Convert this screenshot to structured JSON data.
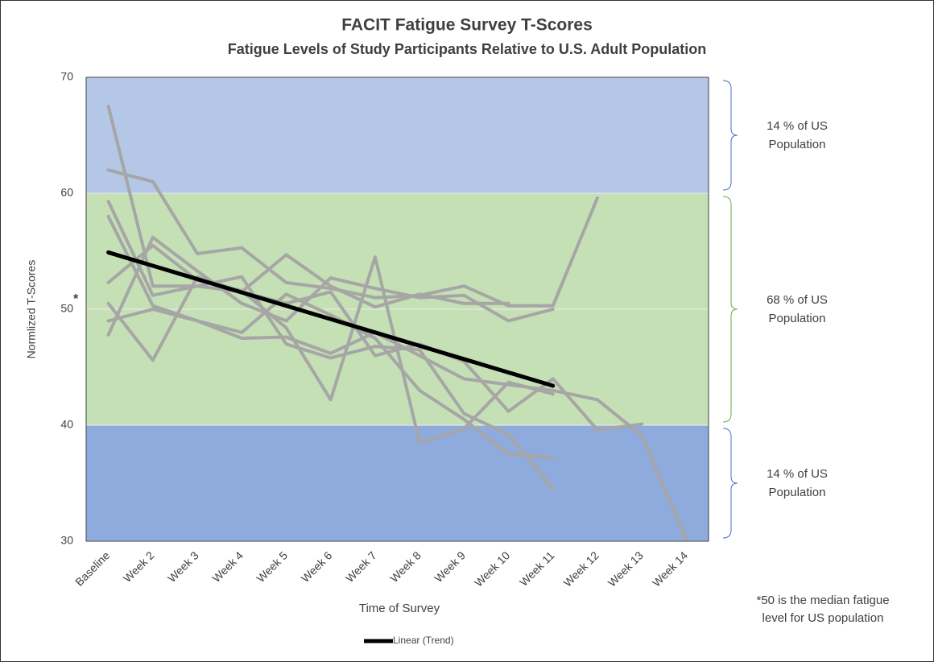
{
  "chart_data": {
    "type": "line",
    "title": "FACIT Fatigue Survey T-Scores",
    "subtitle": "Fatigue Levels of Study Participants Relative to U.S. Adult Population",
    "x_label": "Time of Survey",
    "y_label": "Normlized T-Scores",
    "categories": [
      "Baseline",
      "Week 2",
      "Week 3",
      "Week 4",
      "Week 5",
      "Week 6",
      "Week 7",
      "Week 8",
      "Week 9",
      "Week 10",
      "Week 11",
      "Week 12",
      "Week 13",
      "Week 14"
    ],
    "ylim": [
      30,
      70
    ],
    "yticks": [
      30,
      40,
      50,
      60,
      70
    ],
    "bands": [
      {
        "range": [
          60,
          70
        ],
        "color": "#b4c7e7"
      },
      {
        "range": [
          40,
          60
        ],
        "color": "#c5e0b4"
      },
      {
        "range": [
          30,
          40
        ],
        "color": "#8faadc"
      }
    ],
    "series": [
      {
        "color": "#a6a6a6",
        "values": [
          62,
          61,
          54.8,
          55.3,
          52.3,
          51.8,
          51,
          51.2,
          52,
          50.3,
          50.3,
          59.6,
          null,
          null
        ]
      },
      {
        "color": "#a6a6a6",
        "values": [
          67.5,
          52,
          52,
          51.5,
          54.7,
          52,
          50.2,
          51.3,
          50.5,
          50.5,
          null,
          null,
          null,
          null
        ]
      },
      {
        "color": "#a6a6a6",
        "values": [
          59.3,
          51.2,
          52,
          52.8,
          47,
          45.8,
          46.8,
          46.5,
          41,
          39.2,
          34.5,
          null,
          null,
          null
        ]
      },
      {
        "color": "#a6a6a6",
        "values": [
          58,
          50.3,
          49,
          48,
          51.3,
          49.5,
          47.5,
          43,
          40.5,
          37.5,
          37.2,
          null,
          null,
          null
        ]
      },
      {
        "color": "#a6a6a6",
        "values": [
          47.8,
          56.2,
          53.3,
          50.5,
          49,
          52.7,
          51.8,
          51,
          51.2,
          49,
          50,
          null,
          null,
          null
        ]
      },
      {
        "color": "#a6a6a6",
        "values": [
          52.3,
          55.5,
          52.5,
          51.6,
          48.4,
          42.2,
          54.5,
          38.5,
          39.7,
          43.7,
          42.7,
          null,
          null,
          null
        ]
      },
      {
        "color": "#a6a6a6",
        "values": [
          50.5,
          45.6,
          52.8,
          51.5,
          50.5,
          51.5,
          46,
          47,
          45.5,
          41.2,
          44,
          39.6,
          40.1,
          null
        ]
      },
      {
        "color": "#a6a6a6",
        "values": [
          49,
          50,
          49,
          47.5,
          47.6,
          46.2,
          48,
          46,
          44,
          43.5,
          43,
          42.2,
          39.1,
          30.2
        ]
      },
      {
        "name": "Linear (Trend)",
        "color": "#000000",
        "width": 5,
        "values": [
          54.9,
          53.75,
          52.6,
          51.45,
          50.3,
          49.15,
          48.0,
          46.85,
          45.7,
          44.55,
          43.4,
          null,
          null,
          null
        ]
      }
    ],
    "median_marker": "*",
    "annotations": [
      {
        "lines": [
          "14 % of US",
          "Population"
        ],
        "range": [
          60,
          70
        ]
      },
      {
        "lines": [
          "68 % of US",
          "Population"
        ],
        "range": [
          40,
          60
        ]
      },
      {
        "lines": [
          "14 % of US",
          "Population"
        ],
        "range": [
          30,
          40
        ]
      }
    ],
    "footnote": [
      "*50 is the median fatigue",
      "level for US population"
    ],
    "grid": true
  }
}
